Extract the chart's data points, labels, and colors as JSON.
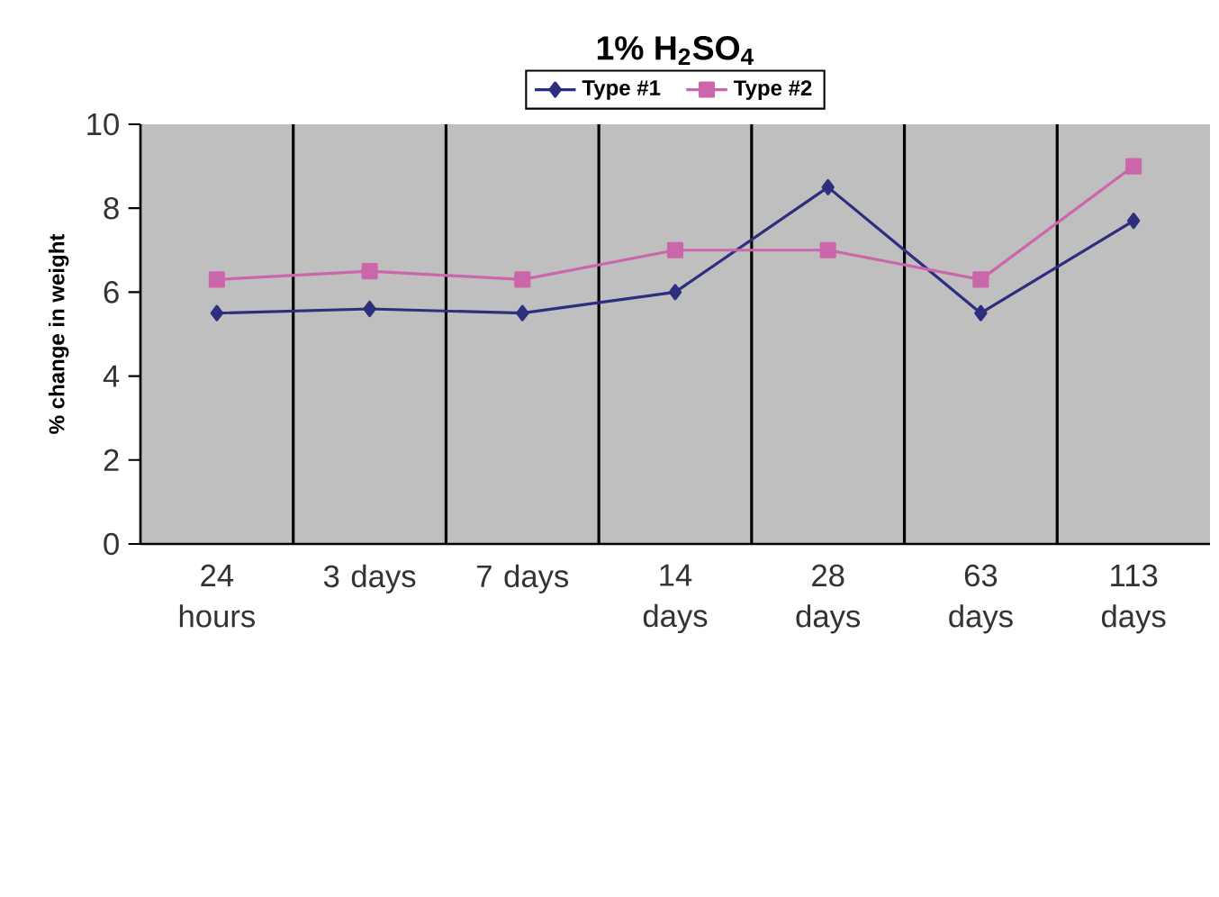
{
  "chart_data": {
    "type": "line",
    "title": "1% H$_{2}$SO$_{4}$",
    "ylabel": "% change in weight",
    "categories": [
      "24 hours",
      "3 days",
      "7 days",
      "14 days",
      "28 days",
      "63 days",
      "113 days"
    ],
    "series": [
      {
        "name": "Type #1",
        "color": "#2e2e7e",
        "marker": "diamond",
        "values": [
          5.5,
          5.6,
          5.5,
          6.0,
          8.5,
          5.5,
          7.7
        ]
      },
      {
        "name": "Type #2",
        "color": "#cc66aa",
        "marker": "square",
        "values": [
          6.3,
          6.5,
          6.3,
          7.0,
          7.0,
          6.3,
          9.0
        ]
      }
    ],
    "ylim": [
      0,
      10
    ],
    "yticks": [
      0,
      2,
      4,
      6,
      8,
      10
    ],
    "grid": "x",
    "legend": "top",
    "line_style": "solid"
  }
}
